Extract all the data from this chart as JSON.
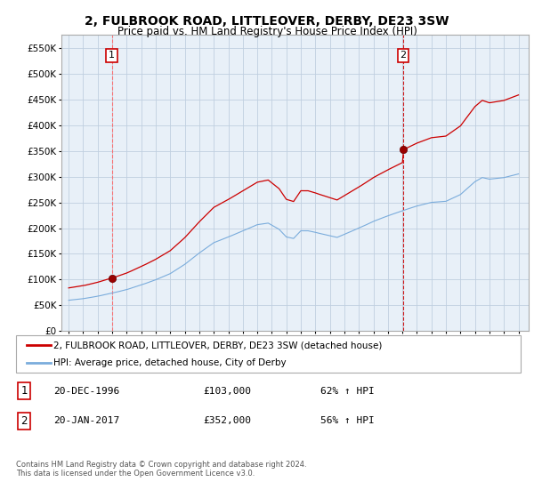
{
  "title": "2, FULBROOK ROAD, LITTLEOVER, DERBY, DE23 3SW",
  "subtitle": "Price paid vs. HM Land Registry's House Price Index (HPI)",
  "legend_line1": "2, FULBROOK ROAD, LITTLEOVER, DERBY, DE23 3SW (detached house)",
  "legend_line2": "HPI: Average price, detached house, City of Derby",
  "sale1_label": "1",
  "sale1_date": "20-DEC-1996",
  "sale1_price": "£103,000",
  "sale1_hpi": "62% ↑ HPI",
  "sale1_year": 1996.97,
  "sale1_value": 103000,
  "sale2_label": "2",
  "sale2_date": "20-JAN-2017",
  "sale2_price": "£352,000",
  "sale2_hpi": "56% ↑ HPI",
  "sale2_year": 2017.05,
  "sale2_value": 352000,
  "hpi_color": "#7aacdc",
  "price_color": "#cc0000",
  "marker_color": "#990000",
  "chart_bg": "#e8f0f8",
  "ylim_min": 0,
  "ylim_max": 575000,
  "yticks": [
    0,
    50000,
    100000,
    150000,
    200000,
    250000,
    300000,
    350000,
    400000,
    450000,
    500000,
    550000
  ],
  "xlim_min": 1993.5,
  "xlim_max": 2025.7,
  "footer": "Contains HM Land Registry data © Crown copyright and database right 2024.\nThis data is licensed under the Open Government Licence v3.0.",
  "bg_color": "#ffffff",
  "grid_color": "#c0cfe0"
}
